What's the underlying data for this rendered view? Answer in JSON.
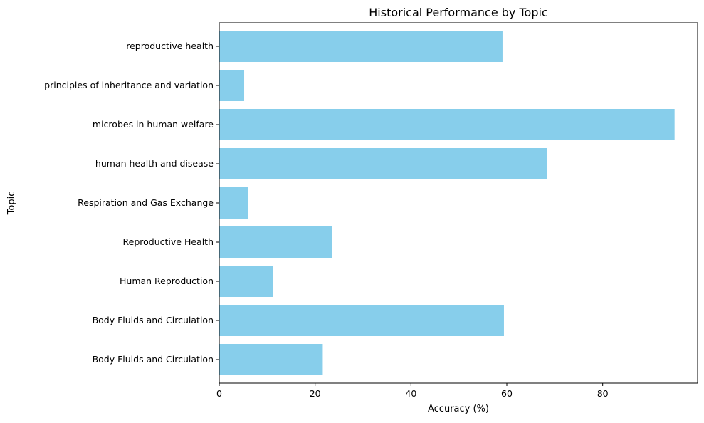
{
  "chart_data": {
    "type": "bar",
    "orientation": "horizontal",
    "title": "Historical Performance by Topic",
    "xlabel": "Accuracy (%)",
    "ylabel": "Topic",
    "categories": [
      "Body Fluids and Circulation",
      "Body Fluids and Circulation ",
      "Human Reproduction",
      "Reproductive Health",
      "Respiration and Gas Exchange",
      "human health and disease ",
      "microbes in human welfare",
      "principles of inheritance and variation ",
      "reproductive health "
    ],
    "values": [
      21.6,
      59.4,
      11.2,
      23.6,
      6.0,
      68.4,
      95.0,
      5.2,
      59.1
    ],
    "xlim": [
      0,
      99.8
    ],
    "xticks": [
      0,
      20,
      40,
      60,
      80
    ],
    "bar_color": "#87ceeb",
    "grid": false,
    "legend": "none"
  }
}
